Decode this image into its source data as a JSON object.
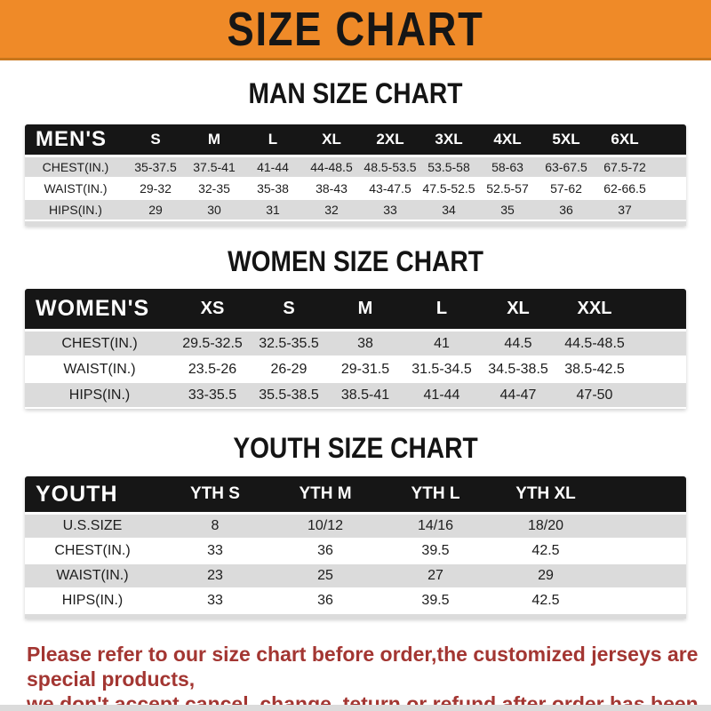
{
  "colors": {
    "banner-bg": "#EF8A28",
    "banner-border": "#C8761C",
    "bar-bg": "#161616",
    "row-shade": "#DBDBDB",
    "heading-text": "#141414",
    "notice-text": "#A33632"
  },
  "banner": {
    "title": "SIZE CHART"
  },
  "chart_data": [
    {
      "type": "table",
      "title": "MAN SIZE CHART",
      "label": "MEN'S",
      "columns": [
        "S",
        "M",
        "L",
        "XL",
        "2XL",
        "3XL",
        "4XL",
        "5XL",
        "6XL"
      ],
      "rows": [
        {
          "label": "CHEST(IN.)",
          "values": [
            "35-37.5",
            "37.5-41",
            "41-44",
            "44-48.5",
            "48.5-53.5",
            "53.5-58",
            "58-63",
            "63-67.5",
            "67.5-72"
          ]
        },
        {
          "label": "WAIST(IN.)",
          "values": [
            "29-32",
            "32-35",
            "35-38",
            "38-43",
            "43-47.5",
            "47.5-52.5",
            "52.5-57",
            "57-62",
            "62-66.5"
          ]
        },
        {
          "label": "HIPS(IN.)",
          "values": [
            "29",
            "30",
            "31",
            "32",
            "33",
            "34",
            "35",
            "36",
            "37"
          ]
        }
      ]
    },
    {
      "type": "table",
      "title": "WOMEN SIZE CHART",
      "label": "WOMEN'S",
      "columns": [
        "XS",
        "S",
        "M",
        "L",
        "XL",
        "XXL"
      ],
      "rows": [
        {
          "label": "CHEST(IN.)",
          "values": [
            "29.5-32.5",
            "32.5-35.5",
            "38",
            "41",
            "44.5",
            "44.5-48.5"
          ]
        },
        {
          "label": "WAIST(IN.)",
          "values": [
            "23.5-26",
            "26-29",
            "29-31.5",
            "31.5-34.5",
            "34.5-38.5",
            "38.5-42.5"
          ]
        },
        {
          "label": "HIPS(IN.)",
          "values": [
            "33-35.5",
            "35.5-38.5",
            "38.5-41",
            "41-44",
            "44-47",
            "47-50"
          ]
        }
      ]
    },
    {
      "type": "table",
      "title": "YOUTH SIZE CHART",
      "label": "YOUTH",
      "columns": [
        "YTH S",
        "YTH M",
        "YTH L",
        "YTH XL"
      ],
      "rows": [
        {
          "label": "U.S.SIZE",
          "values": [
            "8",
            "10/12",
            "14/16",
            "18/20"
          ]
        },
        {
          "label": "CHEST(IN.)",
          "values": [
            "33",
            "36",
            "39.5",
            "42.5"
          ]
        },
        {
          "label": "WAIST(IN.)",
          "values": [
            "23",
            "25",
            "27",
            "29"
          ]
        },
        {
          "label": "HIPS(IN.)",
          "values": [
            "33",
            "36",
            "39.5",
            "42.5"
          ]
        }
      ]
    }
  ],
  "notice": {
    "line1": "Please refer to our size chart before order,the customized jerseys are special products,",
    "line2": "we don't accept cancel, change, teturn or refund after order has been placed!"
  }
}
